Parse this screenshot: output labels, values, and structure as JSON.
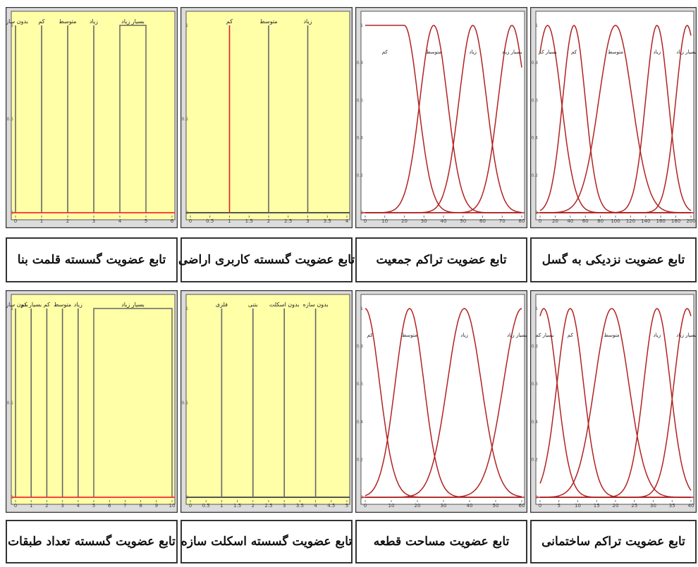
{
  "chart_data": [
    {
      "type": "line",
      "style": "discrete",
      "title": "تابع عضویت گسسته قلمت بنا",
      "bg": "#ffffa8",
      "line_color": "#666666",
      "xlim": [
        0,
        6
      ],
      "ylim": [
        0,
        1
      ],
      "xticks": [
        "0",
        "1",
        "2",
        "3",
        "4",
        "5",
        "6"
      ],
      "yticks": [
        "0",
        "0.5",
        "1"
      ],
      "series": [
        {
          "name": "بدون سازه",
          "x": 0,
          "y": 1
        },
        {
          "name": "کم",
          "x": 1,
          "y": 1
        },
        {
          "name": "متوسط",
          "x": 2,
          "y": 1
        },
        {
          "name": "زیاد",
          "x": 3,
          "y": 1
        },
        {
          "name": "بسیار زیاد",
          "x0": 4,
          "x1": 5,
          "y": 1
        }
      ]
    },
    {
      "type": "line",
      "style": "discrete",
      "title": "تابع عضویت گسسته کاربری اراضی",
      "bg": "#ffffa8",
      "line_color": "#666666",
      "xlim": [
        0,
        4
      ],
      "ylim": [
        0,
        1
      ],
      "xticks": [
        "0",
        "0.5",
        "1",
        "1.5",
        "2",
        "2.5",
        "3",
        "3.5",
        "4"
      ],
      "yticks": [
        "0",
        "0.5",
        "1"
      ],
      "series": [
        {
          "name": "کم",
          "x": 1,
          "y": 1
        },
        {
          "name": "متوسط",
          "x": 2,
          "y": 1
        },
        {
          "name": "زیاد",
          "x": 3,
          "y": 1
        }
      ]
    },
    {
      "type": "line",
      "style": "curves",
      "title": "تابع عضویت تراکم جمعیت",
      "bg": "#ffffff",
      "line_color": "#b22222",
      "xlim": [
        0,
        80
      ],
      "ylim": [
        0,
        1
      ],
      "xticks": [
        "0",
        "10",
        "20",
        "30",
        "40",
        "50",
        "60",
        "70",
        "80"
      ],
      "yticks": [
        "0",
        "0.2",
        "0.4",
        "0.6",
        "0.8",
        "1"
      ],
      "series": [
        {
          "name": "کم",
          "shape": "left",
          "plateau_end": 20,
          "sigma": 7
        },
        {
          "name": "متوسط",
          "shape": "gauss",
          "mean": 35,
          "sigma": 7
        },
        {
          "name": "زیاد",
          "shape": "gauss",
          "mean": 55,
          "sigma": 7
        },
        {
          "name": "بسیار زیاد",
          "shape": "gauss",
          "mean": 75,
          "sigma": 7
        }
      ]
    },
    {
      "type": "line",
      "style": "curves",
      "title": "تابع عضویت نزدیکی به گسل",
      "bg": "#ffffff",
      "line_color": "#b22222",
      "xlim": [
        0,
        200
      ],
      "ylim": [
        0,
        1
      ],
      "xticks": [
        "0",
        "20",
        "40",
        "60",
        "80",
        "100",
        "120",
        "140",
        "160",
        "180",
        "200"
      ],
      "yticks": [
        "0",
        "0.2",
        "0.4",
        "0.6",
        "0.8",
        "1"
      ],
      "series": [
        {
          "name": "بسیار کم",
          "shape": "gauss",
          "mean": 10,
          "sigma": 18
        },
        {
          "name": "کم",
          "shape": "gauss",
          "mean": 45,
          "sigma": 15
        },
        {
          "name": "متوسط",
          "shape": "gauss",
          "mean": 100,
          "sigma": 22
        },
        {
          "name": "زیاد",
          "shape": "gauss",
          "mean": 155,
          "sigma": 15
        },
        {
          "name": "بسیار زیاد",
          "shape": "gauss",
          "mean": 195,
          "sigma": 15
        }
      ]
    },
    {
      "type": "line",
      "style": "discrete",
      "title": "تابع عضویت گسسته تعداد طبقات",
      "bg": "#ffffa8",
      "line_color": "#666666",
      "xlim": [
        0,
        10
      ],
      "ylim": [
        0,
        1
      ],
      "xticks": [
        "0",
        "1",
        "2",
        "3",
        "4",
        "5",
        "6",
        "7",
        "8",
        "9",
        "10"
      ],
      "yticks": [
        "0",
        "0.5",
        "1"
      ],
      "series": [
        {
          "name": "بدون سازه",
          "x": 0,
          "y": 1
        },
        {
          "name": "بسیار کم",
          "x": 1,
          "y": 1
        },
        {
          "name": "کم",
          "x": 2,
          "y": 1
        },
        {
          "name": "متوسط",
          "x": 3,
          "y": 1
        },
        {
          "name": "زیاد",
          "x": 4,
          "y": 1
        },
        {
          "name": "بسیار زیاد",
          "x0": 5,
          "x1": 10,
          "y": 1
        }
      ]
    },
    {
      "type": "line",
      "style": "discrete",
      "title": "تابع عضویت گسسته اسکلت سازه",
      "bg": "#ffffa8",
      "line_color": "#666666",
      "xlim": [
        0,
        5
      ],
      "ylim": [
        0,
        1
      ],
      "xticks": [
        "0",
        "0.5",
        "1",
        "1.5",
        "2",
        "2.5",
        "3",
        "3.5",
        "4",
        "4.5",
        "5"
      ],
      "yticks": [
        "0",
        "0.5",
        "1"
      ],
      "series": [
        {
          "name": "فلزی",
          "x": 1,
          "y": 1
        },
        {
          "name": "بتنی",
          "x": 2,
          "y": 1
        },
        {
          "name": "بدون اسکلت",
          "x": 3,
          "y": 1
        },
        {
          "name": "بدون سازه",
          "x": 4,
          "y": 1
        }
      ]
    },
    {
      "type": "line",
      "style": "curves",
      "title": "تابع عضویت مساحت قطعه",
      "bg": "#ffffff",
      "line_color": "#b22222",
      "xlim": [
        0,
        60
      ],
      "ylim": [
        0,
        1
      ],
      "xticks": [
        "0",
        "10",
        "20",
        "30",
        "40",
        "50",
        "60"
      ],
      "yticks": [
        "0",
        "0.2",
        "0.4",
        "0.6",
        "0.8",
        "1"
      ],
      "series": [
        {
          "name": "کم",
          "shape": "gauss",
          "mean": 0,
          "sigma": 5.5
        },
        {
          "name": "متوسط",
          "shape": "gauss",
          "mean": 17,
          "sigma": 5.5
        },
        {
          "name": "زیاد",
          "shape": "gauss",
          "mean": 38,
          "sigma": 6.5
        },
        {
          "name": "بسیار زیاد",
          "shape": "gauss",
          "mean": 60,
          "sigma": 7
        }
      ]
    },
    {
      "type": "line",
      "style": "curves",
      "title": "تابع عضویت تراکم ساختمانی",
      "bg": "#ffffff",
      "line_color": "#b22222",
      "xlim": [
        0,
        40
      ],
      "ylim": [
        0,
        1
      ],
      "xticks": [
        "0",
        "5",
        "10",
        "15",
        "20",
        "25",
        "30",
        "35",
        "40"
      ],
      "yticks": [
        "0",
        "0.2",
        "0.4",
        "0.6",
        "0.8",
        "1"
      ],
      "series": [
        {
          "name": "بسیار کم",
          "shape": "gauss",
          "mean": 1,
          "sigma": 3.5
        },
        {
          "name": "کم",
          "shape": "gauss",
          "mean": 8,
          "sigma": 3.5
        },
        {
          "name": "متوسط",
          "shape": "gauss",
          "mean": 19,
          "sigma": 4.5
        },
        {
          "name": "زیاد",
          "shape": "gauss",
          "mean": 31,
          "sigma": 3.5
        },
        {
          "name": "بسیار زیاد",
          "shape": "gauss",
          "mean": 39,
          "sigma": 3.5
        }
      ]
    }
  ]
}
